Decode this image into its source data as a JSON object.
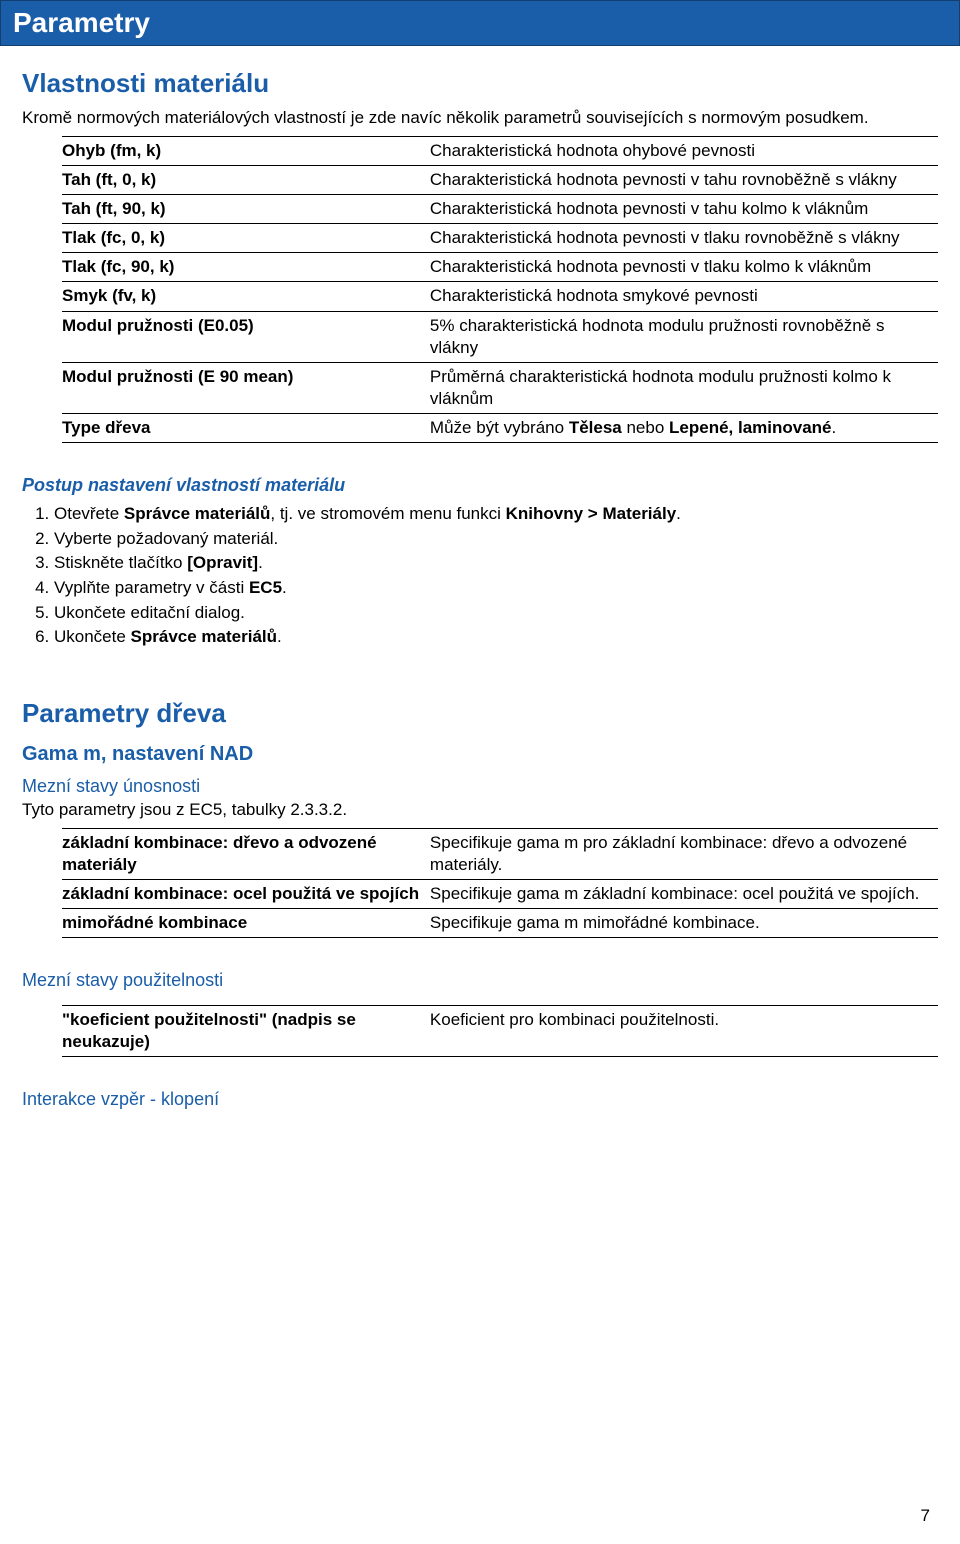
{
  "banner_title": "Parametry",
  "section1": {
    "title": "Vlastnosti materiálu",
    "intro": "Kromě normových materiálových vlastností je zde navíc několik parametrů souvisejících s normovým posudkem.",
    "rows": [
      {
        "l": "Ohyb (fm, k)",
        "r": "Charakteristická hodnota ohybové pevnosti"
      },
      {
        "l": "Tah (ft, 0, k)",
        "r": "Charakteristická hodnota pevnosti v tahu rovnoběžně s vlákny"
      },
      {
        "l": "Tah (ft, 90, k)",
        "r": "Charakteristická hodnota pevnosti v tahu kolmo k vláknům"
      },
      {
        "l": "Tlak (fc, 0, k)",
        "r": "Charakteristická hodnota pevnosti v tlaku rovnoběžně s vlákny"
      },
      {
        "l": "Tlak (fc, 90, k)",
        "r": "Charakteristická hodnota pevnosti v tlaku kolmo k vláknům"
      },
      {
        "l": "Smyk (fv, k)",
        "r": "Charakteristická hodnota smykové pevnosti"
      },
      {
        "l": "Modul pružnosti (E0.05)",
        "r": "5% charakteristická hodnota modulu pružnosti rovnoběžně s vlákny"
      },
      {
        "l": "Modul pružnosti (E 90 mean)",
        "r": "Průměrná charakteristická hodnota modulu pružnosti kolmo k vláknům"
      }
    ],
    "last_row_l": "Type dřeva",
    "last_row_r_pre": "Může být vybráno ",
    "last_row_b1": "Tělesa",
    "last_row_mid": " nebo ",
    "last_row_b2": "Lepené, laminované",
    "last_row_suf": "."
  },
  "procedure": {
    "heading": "Postup nastavení vlastností materiálu",
    "s1_pre": "Otevřete ",
    "s1_b": "Správce materiálů",
    "s1_mid": ", tj. ve stromovém menu funkci ",
    "s1_b2": "Knihovny > Materiály",
    "s1_suf": ".",
    "s2": "Vyberte požadovaný materiál.",
    "s3_pre": "Stiskněte tlačítko ",
    "s3_b": "[Opravit]",
    "s3_suf": ".",
    "s4_pre": "Vyplňte parametry v části ",
    "s4_b": "EC5",
    "s4_suf": ".",
    "s5": "Ukončete editační dialog.",
    "s6_pre": "Ukončete ",
    "s6_b": "Správce materiálů",
    "s6_suf": "."
  },
  "section2": {
    "title": "Parametry dřeva",
    "sub1": "Gama m, nastavení NAD",
    "sub2": "Mezní stavy únosnosti",
    "intro2": "Tyto parametry jsou z EC5, tabulky 2.3.3.2.",
    "rows2": [
      {
        "l": "základní kombinace: dřevo a odvozené materiály",
        "r": "Specifikuje gama m pro základní kombinace: dřevo a odvozené materiály."
      },
      {
        "l": "základní kombinace: ocel použitá ve spojích",
        "r": "Specifikuje gama m základní kombinace: ocel použitá ve spojích."
      },
      {
        "l": "mimořádné kombinace",
        "r": "Specifikuje gama m mimořádné kombinace."
      }
    ],
    "sub3": "Mezní stavy použitelnosti",
    "rows3": [
      {
        "l": "\"koeficient použitelnosti\" (nadpis se neukazuje)",
        "r": "Koeficient pro kombinaci použitelnosti."
      }
    ],
    "sub4": "Interakce vzpěr - klopení"
  },
  "page_number": "7",
  "colors": {
    "banner_bg": "#1a5da8",
    "banner_fg": "#ffffff",
    "heading_fg": "#1a5da8",
    "body_fg": "#000000",
    "page_bg": "#ffffff"
  }
}
